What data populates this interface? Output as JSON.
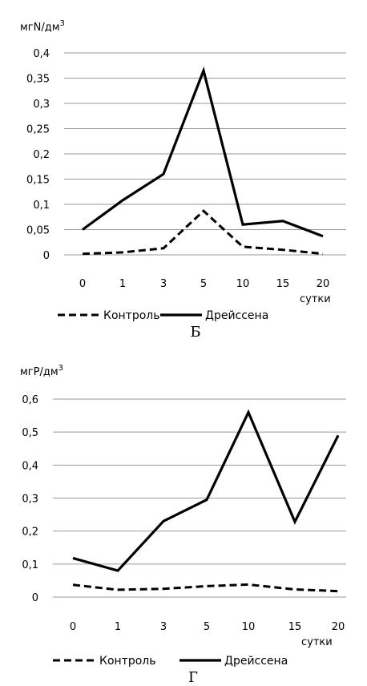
{
  "chart_data": [
    {
      "type": "line",
      "panel_label": "Б",
      "unit_label": "мгN/дм",
      "unit_sup": "3",
      "x_unit": "сутки",
      "categories": [
        "0",
        "1",
        "3",
        "5",
        "10",
        "15",
        "20"
      ],
      "ylim": [
        0,
        0.4
      ],
      "yticks": [
        "0",
        "0,05",
        "0,1",
        "0,15",
        "0,2",
        "0,25",
        "0,3",
        "0,35",
        "0,4"
      ],
      "grid": true,
      "legend_position": "bottom",
      "series": [
        {
          "name": "Контроль",
          "style": "dashed",
          "values": [
            0.002,
            0.005,
            0.013,
            0.087,
            0.016,
            0.01,
            0.002
          ]
        },
        {
          "name": "Дрейссена",
          "style": "solid",
          "values": [
            0.05,
            0.108,
            0.16,
            0.365,
            0.06,
            0.067,
            0.037
          ]
        }
      ]
    },
    {
      "type": "line",
      "panel_label": "Г",
      "unit_label": "мгР/дм",
      "unit_sup": "3",
      "x_unit": "сутки",
      "categories": [
        "0",
        "1",
        "3",
        "5",
        "10",
        "15",
        "20"
      ],
      "ylim": [
        0,
        0.6
      ],
      "yticks": [
        "0",
        "0,1",
        "0,2",
        "0,3",
        "0,4",
        "0,5",
        "0,6"
      ],
      "grid": true,
      "legend_position": "bottom",
      "series": [
        {
          "name": "Контроль",
          "style": "dashed",
          "values": [
            0.037,
            0.022,
            0.025,
            0.033,
            0.038,
            0.023,
            0.018
          ]
        },
        {
          "name": "Дрейссена",
          "style": "solid",
          "values": [
            0.118,
            0.08,
            0.23,
            0.295,
            0.56,
            0.228,
            0.49
          ]
        }
      ]
    }
  ],
  "colors": {
    "line": "#000000",
    "grid": "#9a9a9a"
  }
}
